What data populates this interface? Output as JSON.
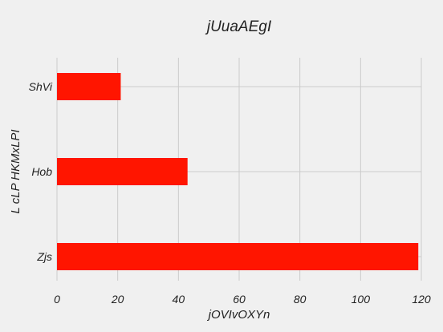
{
  "chart_data": {
    "type": "bar",
    "orientation": "horizontal",
    "title": "jUuaAEgI",
    "xlabel": "jOVIvOXYn",
    "ylabel": "L cLP HKMxLPI",
    "categories": [
      "Zjs",
      "Hob",
      "ShVi"
    ],
    "values": [
      119,
      43,
      21
    ],
    "xlim": [
      0,
      120
    ],
    "xticks": [
      0,
      20,
      40,
      60,
      80,
      100,
      120
    ],
    "grid": true,
    "bar_color": "#ff1500",
    "background_color": "#f0f0f0",
    "grid_color": "#cbcbcb"
  }
}
